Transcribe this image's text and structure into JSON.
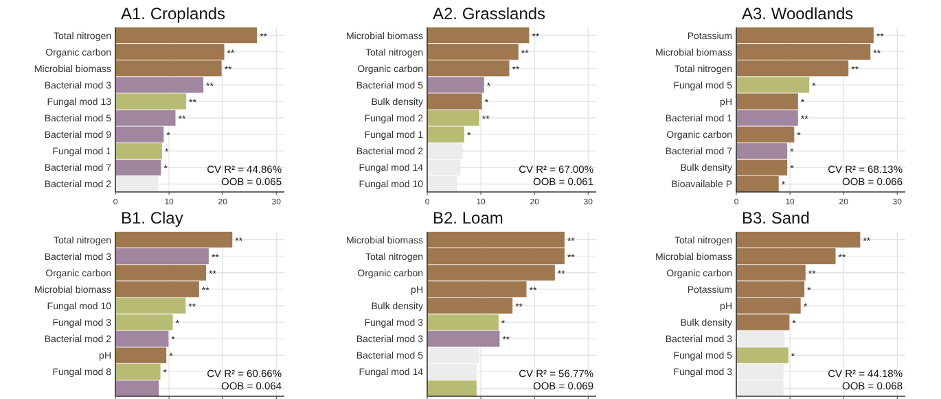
{
  "chart_data": [
    {
      "type": "bar",
      "orientation": "horizontal",
      "title": "A1. Croplands",
      "categories": [
        "Total nitrogen",
        "Organic carbon",
        "Microbial biomass",
        "Bacterial mod 3",
        "Fungal mod 13",
        "Bacterial mod 5",
        "Bacterial mod 9",
        "Fungal mod 1",
        "Bacterial mod 7",
        "Bacterial mod 2"
      ],
      "values": [
        26.4,
        20.3,
        19.8,
        16.4,
        13.2,
        11.2,
        9.0,
        8.7,
        8.5,
        8.0
      ],
      "colors": [
        "#a07850",
        "#a07850",
        "#a07850",
        "#a0869f",
        "#b8bb74",
        "#a0869f",
        "#a0869f",
        "#b8bb74",
        "#a0869f",
        "#ececec"
      ],
      "value_labels": [
        "**",
        "**",
        "**",
        "**",
        "**",
        "**",
        "*",
        "*",
        "*",
        null
      ],
      "xlim": [
        0,
        31.5
      ],
      "xticks": [
        0,
        10,
        20,
        30
      ],
      "grid": true,
      "annotations": [
        "CV R² = 44.86%",
        "OOB = 0.065"
      ]
    },
    {
      "type": "bar",
      "orientation": "horizontal",
      "title": "A2. Grasslands",
      "categories": [
        "Microbial biomass",
        "Total nitrogen",
        "Organic carbon",
        "Bacterial mod 5",
        "Bulk density",
        "Fungal mod 2",
        "Fungal mod 1",
        "Bacterial mod 2",
        "Fungal mod 14",
        "Fungal mod 10"
      ],
      "values": [
        19.0,
        17.0,
        15.3,
        10.6,
        10.2,
        9.7,
        6.9,
        6.6,
        6.2,
        5.5
      ],
      "colors": [
        "#a07850",
        "#a07850",
        "#a07850",
        "#a0869f",
        "#a07850",
        "#b8bb74",
        "#b8bb74",
        "#ececec",
        "#ececec",
        "#ececec"
      ],
      "value_labels": [
        "**",
        "**",
        "**",
        "*",
        "*",
        "**",
        "*",
        null,
        null,
        null
      ],
      "xlim": [
        0,
        31.5
      ],
      "xticks": [
        0,
        10,
        20,
        30
      ],
      "grid": true,
      "annotations": [
        "CV R² = 67.00%",
        "OOB = 0.061"
      ]
    },
    {
      "type": "bar",
      "orientation": "horizontal",
      "title": "A3. Woodlands",
      "categories": [
        "Potassium",
        "Microbial biomass",
        "Total nitrogen",
        "Fungal mod 5",
        "pH",
        "Bacterial mod 1",
        "Organic carbon",
        "Bacterial mod 7",
        "Bulk density",
        "Bioavailable P"
      ],
      "values": [
        25.6,
        25.0,
        20.9,
        13.6,
        11.5,
        11.5,
        10.8,
        9.5,
        9.5,
        7.9
      ],
      "colors": [
        "#a07850",
        "#a07850",
        "#a07850",
        "#b8bb74",
        "#a07850",
        "#a0869f",
        "#a07850",
        "#a0869f",
        "#a07850",
        "#a07850"
      ],
      "value_labels": [
        "**",
        "**",
        "**",
        "*",
        "*",
        "**",
        "*",
        "*",
        "*",
        "*"
      ],
      "xlim": [
        0,
        31.5
      ],
      "xticks": [
        0,
        10,
        20,
        30
      ],
      "grid": true,
      "annotations": [
        "CV R² = 68.13%",
        "OOB = 0.066"
      ]
    },
    {
      "type": "bar",
      "orientation": "horizontal",
      "title": "B1. Clay",
      "categories": [
        "Total nitrogen",
        "Bacterial mod 3",
        "Organic carbon",
        "Microbial biomass",
        "Fungal mod 10",
        "Fungal mod 3",
        "Bacterial mod 2",
        "pH",
        "Fungal mod 8",
        null
      ],
      "values": [
        21.8,
        17.4,
        16.9,
        15.6,
        13.1,
        10.7,
        9.9,
        9.5,
        8.4,
        8.1
      ],
      "colors": [
        "#a07850",
        "#a0869f",
        "#a07850",
        "#a07850",
        "#b8bb74",
        "#b8bb74",
        "#a0869f",
        "#a07850",
        "#b8bb74",
        "#a0869f"
      ],
      "value_labels": [
        "**",
        "**",
        "**",
        "**",
        "**",
        "*",
        "*",
        "*",
        "*",
        null
      ],
      "xlim": [
        0,
        31.5
      ],
      "xticks": [
        0,
        10,
        20,
        30
      ],
      "grid": true,
      "tick_labels": "y",
      "annotations": [
        "CV R² = 60.66%",
        "OOB = 0.064"
      ]
    },
    {
      "type": "bar",
      "orientation": "horizontal",
      "title": "B2. Loam",
      "categories": [
        "Microbial biomass",
        "Total nitrogen",
        "Organic carbon",
        "pH",
        "Bulk density",
        "Fungal mod 3",
        "Bacterial mod 3",
        "Bacterial mod 5",
        "Fungal mod 14",
        null
      ],
      "values": [
        25.6,
        25.6,
        23.8,
        18.5,
        15.9,
        13.3,
        13.5,
        9.7,
        9.2,
        9.2
      ],
      "colors": [
        "#a07850",
        "#a07850",
        "#a07850",
        "#a07850",
        "#a07850",
        "#b8bb74",
        "#a0869f",
        "#ececec",
        "#ececec",
        "#b8bb74"
      ],
      "value_labels": [
        "**",
        "**",
        "**",
        "**",
        "**",
        "*",
        "**",
        null,
        null,
        null
      ],
      "xlim": [
        0,
        31.5
      ],
      "xticks": [
        0,
        10,
        20,
        30
      ],
      "grid": true,
      "tick_labels": "y",
      "annotations": [
        "CV R² = 56.77%",
        "OOB = 0.069"
      ]
    },
    {
      "type": "bar",
      "orientation": "horizontal",
      "title": "B3. Sand",
      "categories": [
        "Total nitrogen",
        "Microbial biomass",
        "Organic carbon",
        "Potassium",
        "pH",
        "Bulk density",
        "Bacterial mod 3",
        "Fungal mod 5",
        "Fungal mod 3",
        null
      ],
      "values": [
        23.1,
        18.5,
        12.9,
        12.7,
        12.0,
        9.9,
        9.0,
        9.7,
        8.8,
        8.8
      ],
      "colors": [
        "#a07850",
        "#a07850",
        "#a07850",
        "#a07850",
        "#a07850",
        "#a07850",
        "#ececec",
        "#b8bb74",
        "#ececec",
        "#ececec"
      ],
      "value_labels": [
        "**",
        "**",
        "**",
        "*",
        "*",
        "*",
        null,
        "*",
        null,
        null
      ],
      "xlim": [
        0,
        31.5
      ],
      "xticks": [
        0,
        10,
        20,
        30
      ],
      "grid": true,
      "tick_labels": "y",
      "annotations": [
        "CV R² = 44.18%",
        "OOB = 0.068"
      ]
    }
  ]
}
